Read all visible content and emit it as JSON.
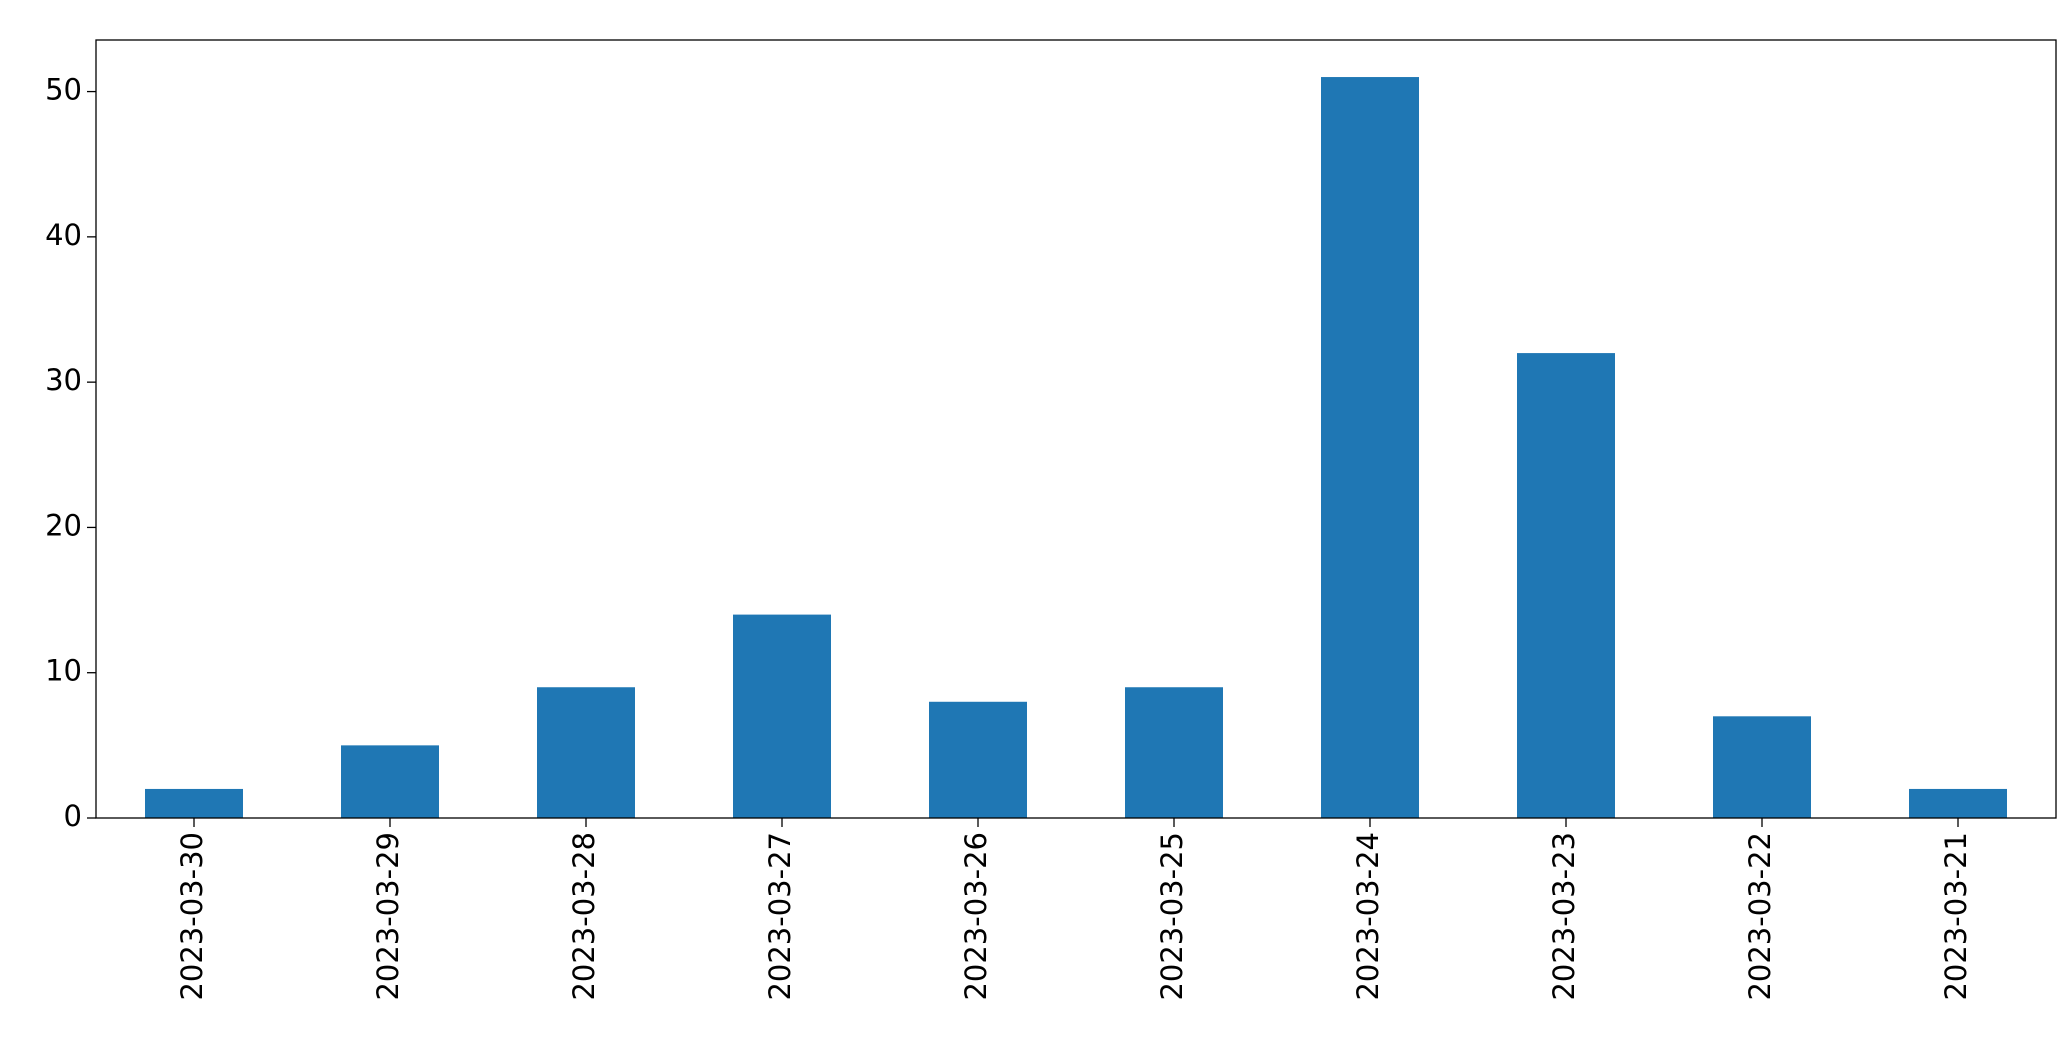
{
  "chart_data": {
    "type": "bar",
    "categories": [
      "2023-03-30",
      "2023-03-29",
      "2023-03-28",
      "2023-03-27",
      "2023-03-26",
      "2023-03-25",
      "2023-03-24",
      "2023-03-23",
      "2023-03-22",
      "2023-03-21"
    ],
    "values": [
      2,
      5,
      9,
      14,
      8,
      9,
      51,
      32,
      7,
      2
    ],
    "color": "#1f77b4",
    "ylim": [
      0,
      53.55
    ],
    "yticks": [
      0,
      10,
      20,
      30,
      40,
      50
    ],
    "grid": false
  }
}
